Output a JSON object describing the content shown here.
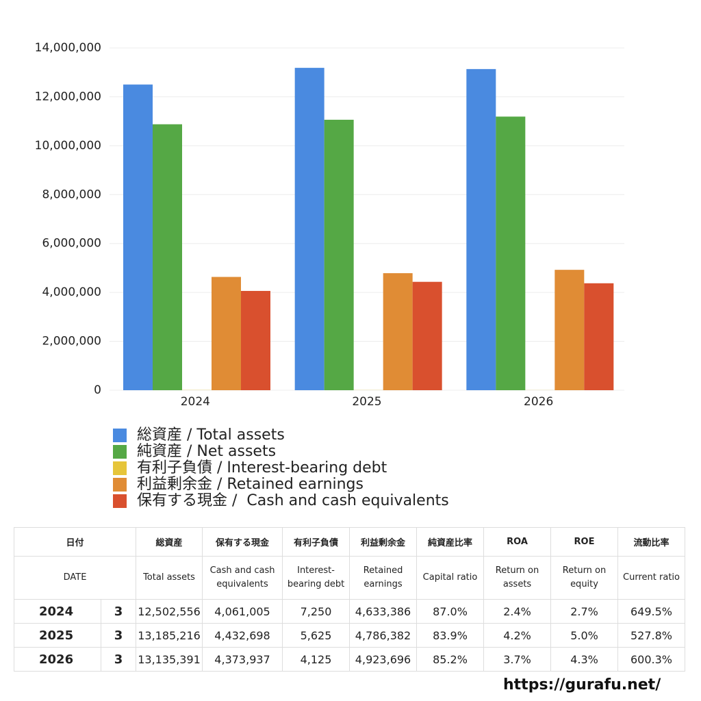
{
  "chart_data": {
    "type": "bar",
    "categories": [
      "2024",
      "2025",
      "2026"
    ],
    "series": [
      {
        "name": "総資産 / Total assets",
        "color": "#4a8ae0",
        "values": [
          12502556,
          13185216,
          13135391
        ]
      },
      {
        "name": "純資産 / Net assets",
        "color": "#55a845",
        "values": [
          10877000,
          11062000,
          11191000
        ]
      },
      {
        "name": "有利子負債 / Interest-bearing debt",
        "color": "#e6c53a",
        "values": [
          7250,
          5625,
          4125
        ]
      },
      {
        "name": "利益剰余金 / Retained earnings",
        "color": "#e08c35",
        "values": [
          4633386,
          4786382,
          4923696
        ]
      },
      {
        "name": "保有する現金 /  Cash and cash equivalents",
        "color": "#d9502e",
        "values": [
          4061005,
          4432698,
          4373937
        ]
      }
    ],
    "ylim": [
      0,
      14000000
    ],
    "yticks": [
      0,
      {
        "value": 2000000,
        "label": "2,000,000"
      },
      {
        "value": 4000000,
        "label": "4,000,000"
      },
      {
        "value": 6000000,
        "label": "6,000,000"
      },
      {
        "value": 8000000,
        "label": "8,000,000"
      },
      {
        "value": 10000000,
        "label": "10,000,000"
      },
      {
        "value": 12000000,
        "label": "12,000,000"
      },
      {
        "value": 14000000,
        "label": "14,000,000"
      }
    ],
    "grid": true
  },
  "table": {
    "columns": [
      {
        "ja": "日付",
        "en": "DATE"
      },
      {
        "ja": "総資産",
        "en": "Total assets"
      },
      {
        "ja": "保有する現金",
        "en": "Cash and cash equivalents"
      },
      {
        "ja": "有利子負債",
        "en": "Interest-bearing debt"
      },
      {
        "ja": "利益剰余金",
        "en": "Retained earnings"
      },
      {
        "ja": "純資産比率",
        "en": "Capital ratio"
      },
      {
        "ja": "ROA",
        "en": "Return on assets"
      },
      {
        "ja": "ROE",
        "en": "Return on equity"
      },
      {
        "ja": "流動比率",
        "en": "Current ratio"
      }
    ],
    "rows": [
      [
        "2024",
        "3",
        "12,502,556",
        "4,061,005",
        "7,250",
        "4,633,386",
        "87.0%",
        "2.4%",
        "2.7%",
        "649.5%"
      ],
      [
        "2025",
        "3",
        "13,185,216",
        "4,432,698",
        "5,625",
        "4,786,382",
        "83.9%",
        "4.2%",
        "5.0%",
        "527.8%"
      ],
      [
        "2026",
        "3",
        "13,135,391",
        "4,373,937",
        "4,125",
        "4,923,696",
        "85.2%",
        "3.7%",
        "4.3%",
        "600.3%"
      ]
    ]
  },
  "footer": "https://gurafu.net/"
}
